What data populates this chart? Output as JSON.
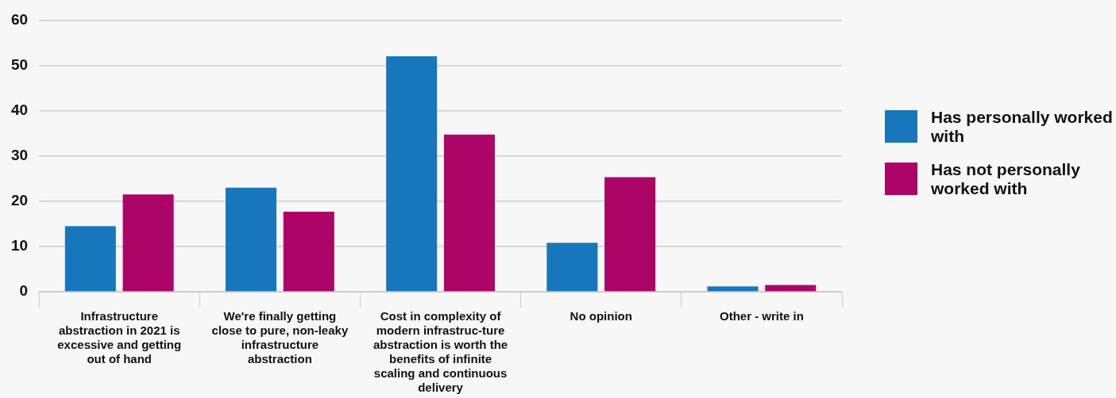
{
  "chart_data": {
    "type": "bar",
    "categories": [
      "Infrastructure abstraction in 2021 is excessive and getting out of hand",
      "We're finally getting close to pure, non-leaky infrastructure abstraction",
      "Cost in complexity of modern infrastruc-ture abstraction is worth the benefits of infinite scaling and continuous delivery",
      "No opinion",
      "Other - write in"
    ],
    "series": [
      {
        "name": "Has personally worked with",
        "color": "#1877bc",
        "values": [
          14.5,
          23,
          52,
          10.8,
          1.2
        ]
      },
      {
        "name": "Has not personally worked with",
        "color": "#ad0468",
        "values": [
          21.5,
          17.7,
          34.7,
          25.3,
          1.5
        ]
      }
    ],
    "ylim": [
      0,
      60
    ],
    "yticks": [
      0,
      10,
      20,
      30,
      40,
      50,
      60
    ],
    "grid": "y",
    "legend": "right"
  }
}
